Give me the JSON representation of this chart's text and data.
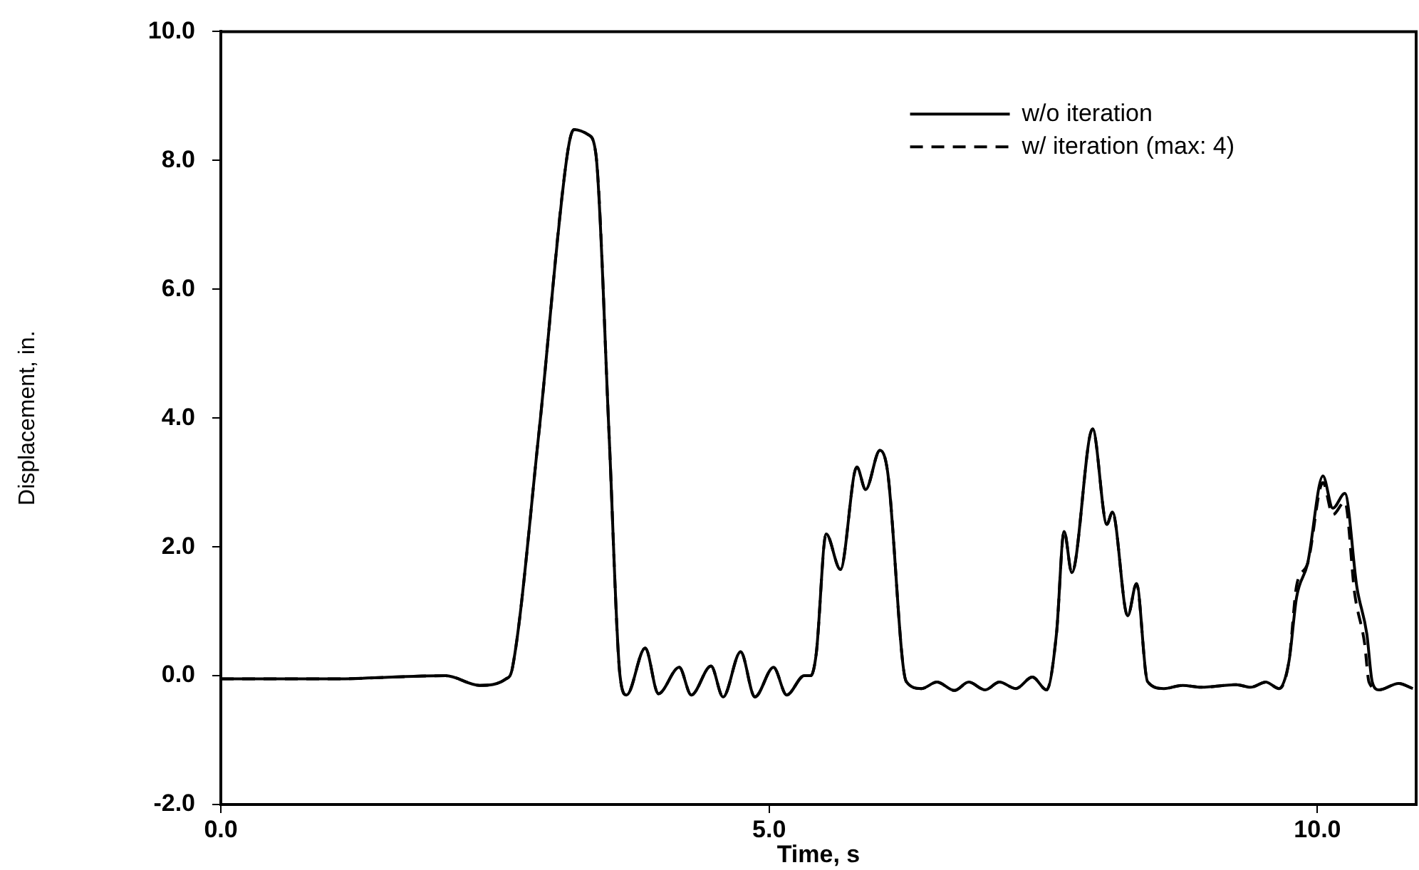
{
  "chart_data": {
    "type": "line",
    "xlabel": "Time, s",
    "ylabel": "Displacement, in.",
    "xlim": [
      0,
      10.9
    ],
    "xticks": [
      {
        "value": 0,
        "label": "0.0"
      },
      {
        "value": 5,
        "label": "5.0"
      },
      {
        "value": 10,
        "label": "10.0"
      }
    ],
    "ylim": [
      -2,
      10
    ],
    "yticks": [
      {
        "value": -2,
        "label": "-2.0"
      },
      {
        "value": 0,
        "label": "0.0"
      },
      {
        "value": 2,
        "label": "2.0"
      },
      {
        "value": 4,
        "label": "4.0"
      },
      {
        "value": 6,
        "label": "6.0"
      },
      {
        "value": 8,
        "label": "8.0"
      },
      {
        "value": 10,
        "label": "10.0"
      }
    ],
    "legend": "top right",
    "marker": "none",
    "series": [
      {
        "name": "w/o iteration",
        "color": "#000000",
        "line_style": "solid",
        "x": [
          0,
          1.0,
          2.05,
          2.36,
          2.6,
          2.66,
          2.9,
          3.16,
          3.22,
          3.35,
          3.42,
          3.54,
          3.64,
          3.7,
          3.87,
          3.99,
          4.18,
          4.29,
          4.47,
          4.58,
          4.74,
          4.87,
          5.04,
          5.16,
          5.32,
          5.38,
          5.43,
          5.52,
          5.65,
          5.8,
          5.88,
          6.01,
          6.08,
          6.25,
          6.39,
          6.53,
          6.69,
          6.82,
          6.97,
          7.1,
          7.25,
          7.4,
          7.53,
          7.62,
          7.69,
          7.76,
          7.95,
          8.08,
          8.13,
          8.27,
          8.35,
          8.45,
          8.6,
          8.77,
          8.94,
          9.26,
          9.39,
          9.53,
          9.65,
          9.74,
          9.81,
          9.91,
          10.05,
          10.14,
          10.25,
          10.36,
          10.45,
          10.5,
          10.56,
          10.74,
          10.87
        ],
        "values": [
          -0.05,
          -0.05,
          0.0,
          -0.15,
          -0.05,
          0.13,
          3.76,
          8.1,
          8.48,
          8.4,
          8.1,
          3.76,
          0.0,
          -0.3,
          0.43,
          -0.28,
          0.13,
          -0.3,
          0.15,
          -0.33,
          0.37,
          -0.33,
          0.13,
          -0.3,
          0.0,
          0.0,
          0.35,
          2.2,
          1.65,
          3.24,
          2.89,
          3.5,
          3.17,
          -0.09,
          -0.2,
          -0.1,
          -0.23,
          -0.1,
          -0.22,
          -0.1,
          -0.2,
          -0.02,
          -0.22,
          0.65,
          2.24,
          1.6,
          3.83,
          2.35,
          2.54,
          0.93,
          1.43,
          -0.09,
          -0.2,
          -0.15,
          -0.18,
          -0.14,
          -0.18,
          -0.1,
          -0.2,
          0.22,
          1.22,
          1.74,
          3.1,
          2.6,
          2.83,
          1.37,
          0.65,
          -0.1,
          -0.22,
          -0.12,
          -0.2
        ]
      },
      {
        "name": "w/ iteration (max: 4)",
        "color": "#000000",
        "line_style": "dashed",
        "x": [
          0,
          1.0,
          2.05,
          2.36,
          2.6,
          2.66,
          2.9,
          3.16,
          3.22,
          3.35,
          3.42,
          3.54,
          3.64,
          3.7,
          3.87,
          3.99,
          4.18,
          4.29,
          4.47,
          4.58,
          4.74,
          4.87,
          5.04,
          5.16,
          5.32,
          5.38,
          5.43,
          5.52,
          5.65,
          5.8,
          5.88,
          6.01,
          6.08,
          6.25,
          6.39,
          6.53,
          6.69,
          6.82,
          6.97,
          7.1,
          7.25,
          7.4,
          7.53,
          7.62,
          7.69,
          7.76,
          7.95,
          8.08,
          8.13,
          8.27,
          8.35,
          8.45,
          8.6,
          8.77,
          8.94,
          9.26,
          9.39,
          9.53,
          9.65,
          9.74,
          9.81,
          9.91,
          10.05,
          10.14,
          10.25,
          10.34,
          10.43,
          10.47,
          10.56,
          10.74,
          10.87
        ],
        "values": [
          -0.05,
          -0.05,
          0.0,
          -0.15,
          -0.05,
          0.13,
          3.76,
          8.1,
          8.48,
          8.4,
          8.1,
          3.76,
          0.0,
          -0.3,
          0.43,
          -0.28,
          0.13,
          -0.3,
          0.15,
          -0.33,
          0.37,
          -0.33,
          0.13,
          -0.3,
          0.0,
          0.0,
          0.35,
          2.2,
          1.65,
          3.24,
          2.89,
          3.5,
          3.17,
          -0.09,
          -0.2,
          -0.1,
          -0.23,
          -0.1,
          -0.22,
          -0.1,
          -0.2,
          -0.02,
          -0.22,
          0.65,
          2.24,
          1.6,
          3.83,
          2.35,
          2.54,
          0.93,
          1.43,
          -0.09,
          -0.2,
          -0.15,
          -0.18,
          -0.14,
          -0.18,
          -0.1,
          -0.2,
          0.22,
          1.4,
          1.74,
          3.0,
          2.5,
          2.7,
          1.27,
          0.5,
          -0.1,
          -0.22,
          -0.12,
          -0.2
        ]
      }
    ]
  }
}
